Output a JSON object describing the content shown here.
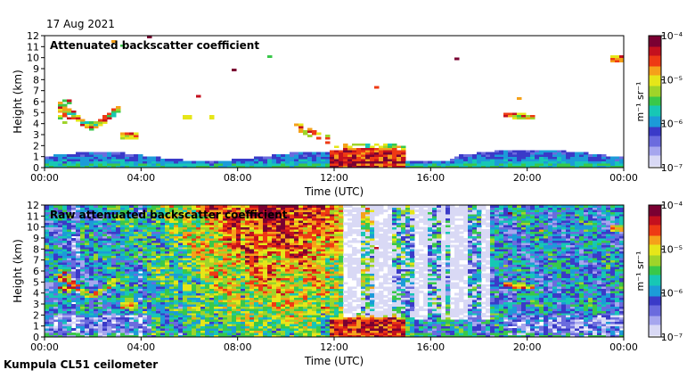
{
  "date": "17 Aug 2021",
  "footer": "Kumpula CL51 ceilometer",
  "colorbar_unit": "m⁻¹ sr⁻¹",
  "colorbar_ticks": [
    "10⁻⁴",
    "10⁻⁵",
    "10⁻⁶",
    "10⁻⁷"
  ],
  "chart_data": [
    {
      "type": "heatmap",
      "title": "Attenuated backscatter coefficient",
      "xlabel": "Time (UTC)",
      "ylabel": "Height (km)",
      "x_ticks": [
        "00:00",
        "04:00",
        "08:00",
        "12:00",
        "16:00",
        "20:00",
        "00:00"
      ],
      "y_ticks": [
        "0",
        "1",
        "2",
        "3",
        "4",
        "5",
        "6",
        "7",
        "8",
        "9",
        "10",
        "11",
        "12"
      ],
      "xlim_hours": [
        0,
        24
      ],
      "ylim_km": [
        0,
        12
      ],
      "colorbar": {
        "scale": "log",
        "range": [
          1e-07,
          0.0001
        ]
      },
      "features": [
        {
          "name": "boundary-layer aerosol",
          "t_start": 0.3,
          "t_end": 24,
          "h_bottom": 0,
          "h_top": 1.5
        },
        {
          "name": "elevated aerosol layer",
          "t_start": 0.6,
          "t_end": 3.2,
          "h_bottom": 3.5,
          "h_top": 6.3
        },
        {
          "name": "low cloud / rain",
          "t_start": 11.8,
          "t_end": 15.0,
          "h_bottom": 0,
          "h_top": 2.1
        },
        {
          "name": "mid-level cloud",
          "t_start": 19.1,
          "t_end": 20.3,
          "h_bottom": 4.5,
          "h_top": 5.2
        },
        {
          "name": "high cloud",
          "t_start": 23.4,
          "t_end": 24,
          "h_bottom": 9.5,
          "h_top": 10.3
        }
      ],
      "grid": false
    },
    {
      "type": "heatmap",
      "title": "Raw attenuated backscatter coefficient",
      "xlabel": "Time (UTC)",
      "ylabel": "Height (km)",
      "x_ticks": [
        "00:00",
        "04:00",
        "08:00",
        "12:00",
        "16:00",
        "20:00",
        "00:00"
      ],
      "y_ticks": [
        "0",
        "1",
        "2",
        "3",
        "4",
        "5",
        "6",
        "7",
        "8",
        "9",
        "10",
        "11",
        "12"
      ],
      "xlim_hours": [
        0,
        24
      ],
      "ylim_km": [
        0,
        12
      ],
      "colorbar": {
        "scale": "log",
        "range": [
          1e-07,
          0.0001
        ]
      },
      "features": [
        {
          "name": "daytime noise",
          "t_start": 4,
          "t_end": 12,
          "h_bottom": 2,
          "h_top": 12
        },
        {
          "name": "low cloud / rain",
          "t_start": 11.8,
          "t_end": 15.0,
          "h_bottom": 0,
          "h_top": 2.1
        },
        {
          "name": "attenuated columns",
          "t_start": 12.5,
          "t_end": 18.5,
          "h_bottom": 1.5,
          "h_top": 12
        }
      ],
      "grid": false
    }
  ]
}
